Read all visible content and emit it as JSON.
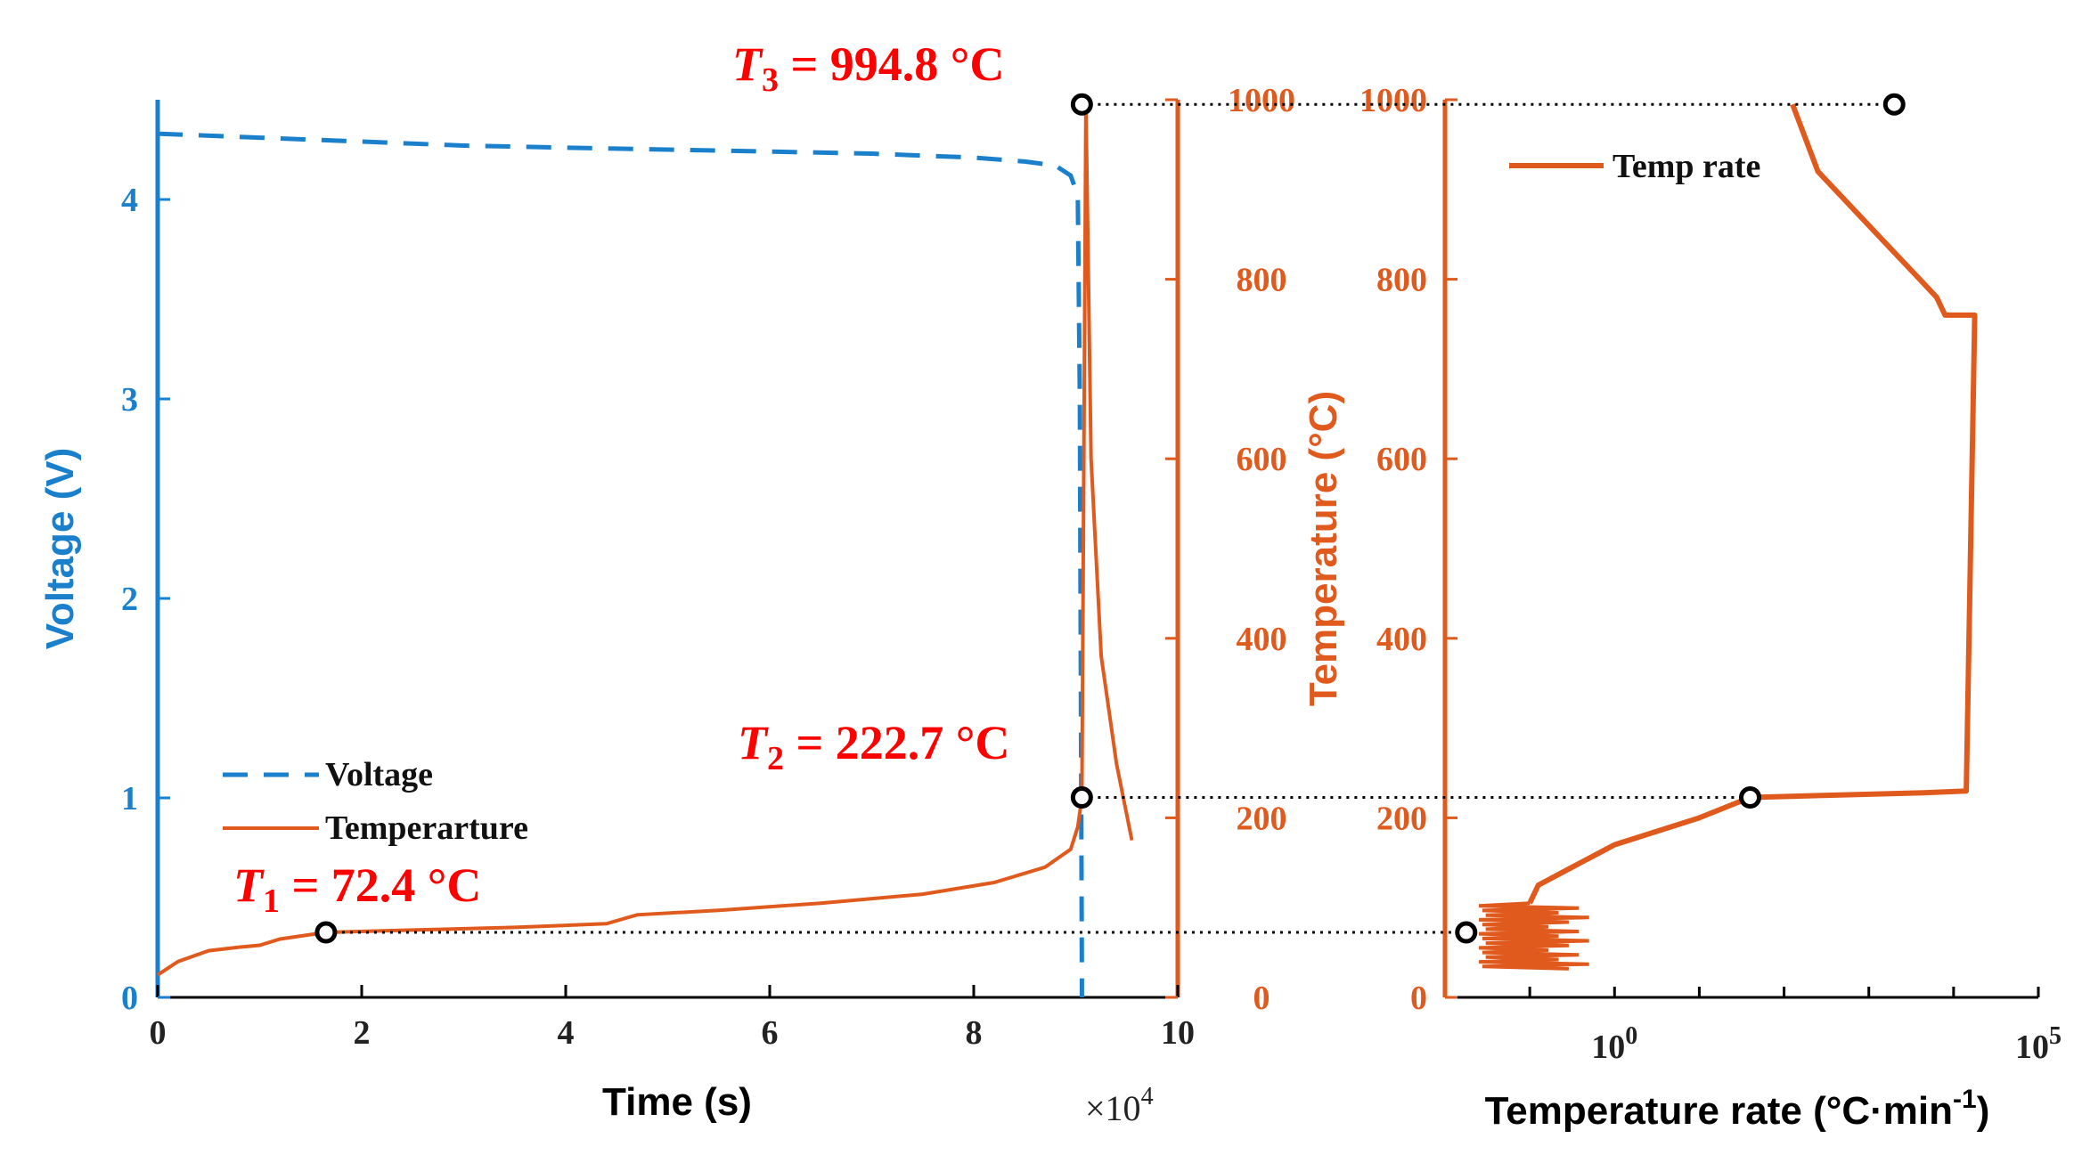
{
  "colors": {
    "voltage": "#1a80cc",
    "temperature": "#e05a1e",
    "annotation": "#ff0000",
    "axis_black": "#000000"
  },
  "chart_data": [
    {
      "type": "line",
      "panel": "left",
      "xlabel": "Time (s)",
      "x_multiplier": "×10",
      "x_multiplier_exp": "4",
      "xlim": [
        0,
        10
      ],
      "xticks": [
        0,
        2,
        4,
        6,
        8,
        10
      ],
      "left_axis": {
        "label": "Voltage (V)",
        "ylim": [
          0,
          4.5
        ],
        "ticks": [
          0,
          1,
          2,
          3,
          4
        ]
      },
      "right_axis": {
        "label": "",
        "ylim": [
          0,
          1000
        ],
        "ticks": [
          0,
          200,
          400,
          600,
          800,
          1000
        ]
      },
      "legend": {
        "position": "bottom-left",
        "entries": [
          "Voltage",
          "Temperarture"
        ]
      },
      "series": [
        {
          "name": "Voltage",
          "axis": "left",
          "style": "dashed",
          "x": [
            0,
            1,
            2,
            3,
            4,
            5,
            6,
            7,
            8,
            8.5,
            8.8,
            8.95,
            9.02,
            9.04,
            9.06,
            9.06
          ],
          "y": [
            4.33,
            4.31,
            4.29,
            4.27,
            4.26,
            4.25,
            4.24,
            4.23,
            4.21,
            4.19,
            4.17,
            4.12,
            4.02,
            3.0,
            0.1,
            0.0
          ]
        },
        {
          "name": "Temperarture",
          "axis": "right",
          "style": "solid",
          "x": [
            0,
            0.2,
            0.5,
            0.8,
            1.0,
            1.2,
            1.65,
            2.5,
            3.5,
            4.4,
            4.7,
            5.5,
            6.5,
            7.5,
            8.2,
            8.7,
            8.95,
            9.02,
            9.06,
            9.1,
            9.15,
            9.25,
            9.4,
            9.55
          ],
          "y": [
            25,
            40,
            52,
            56,
            58,
            65,
            72.4,
            75,
            78,
            82,
            92,
            97,
            105,
            115,
            128,
            145,
            165,
            190,
            222.7,
            994.8,
            600,
            380,
            260,
            175
          ]
        }
      ]
    },
    {
      "type": "line",
      "panel": "right",
      "xlabel": "Temperature rate (°C·min",
      "xlabel_sup": "-1",
      "xlabel_close": ")",
      "xscale": "log",
      "xlim_log10": [
        -2,
        5
      ],
      "xtick_labels": [
        {
          "value_log10": 0,
          "base": "10",
          "exp": "0"
        },
        {
          "value_log10": 5,
          "base": "10",
          "exp": "5"
        }
      ],
      "ylabel": "Temperature (°C)",
      "ylim": [
        0,
        1000
      ],
      "yticks": [
        0,
        200,
        400,
        600,
        800,
        1000
      ],
      "legend": {
        "position": "top-left",
        "entries": [
          "Temp rate"
        ]
      },
      "series": [
        {
          "name": "Temp rate",
          "x_log10": [
            2.1,
            2.4,
            3.2,
            3.6,
            3.8,
            3.9,
            4.25,
            4.15,
            3.65,
            1.6,
            1.0,
            0.5,
            0.0,
            -0.2,
            -0.5,
            -0.9,
            -1.0
          ],
          "y": [
            994.8,
            920,
            840,
            800,
            780,
            760,
            760,
            230,
            228,
            222.7,
            200,
            185,
            170,
            160,
            145,
            125,
            105
          ]
        }
      ]
    }
  ],
  "annotations": [
    {
      "label": "T",
      "sub": "1",
      "text": " = 72.4 °C",
      "value_c": 72.4,
      "time_x1e4": 1.65,
      "rate_log10": -1.75
    },
    {
      "label": "T",
      "sub": "2",
      "text": " = 222.7 °C",
      "value_c": 222.7,
      "time_x1e4": 9.06,
      "rate_log10": 1.6
    },
    {
      "label": "T",
      "sub": "3",
      "text": " = 994.8 °C",
      "value_c": 994.8,
      "time_x1e4": 9.06,
      "rate_log10": 3.3
    }
  ]
}
